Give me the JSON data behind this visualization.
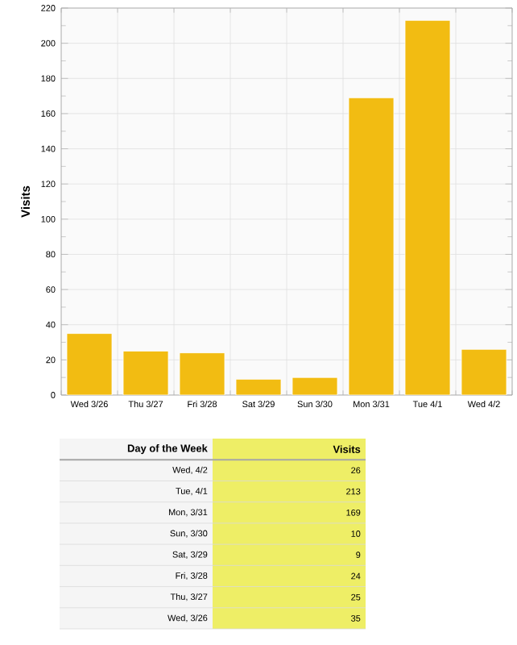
{
  "chart_data": [
    {
      "type": "bar",
      "ylabel": "Visits",
      "categories": [
        "Wed 3/26",
        "Thu 3/27",
        "Fri 3/28",
        "Sat 3/29",
        "Sun 3/30",
        "Mon 3/31",
        "Tue 4/1",
        "Wed 4/2"
      ],
      "values": [
        35,
        25,
        24,
        9,
        10,
        169,
        213,
        26
      ],
      "color": "#f2bc12",
      "ylim": [
        0,
        220
      ],
      "yticks": [
        0,
        20,
        40,
        60,
        80,
        100,
        120,
        140,
        160,
        180,
        200,
        220
      ],
      "grid": true
    },
    {
      "type": "other",
      "xlabel": "Day of the Week",
      "ylabel": "Visits",
      "categories": [
        "Wed, 4/2",
        "Tue, 4/1",
        "Mon, 3/31",
        "Sun, 3/30",
        "Sat, 3/29",
        "Fri, 3/28",
        "Thu, 3/27",
        "Wed, 3/26"
      ],
      "values": [
        26,
        213,
        169,
        10,
        9,
        24,
        25,
        35
      ],
      "value_labels": [
        "26",
        "213",
        "169",
        "10",
        "9",
        "24",
        "25",
        "35"
      ],
      "color": "#eeee66"
    }
  ]
}
